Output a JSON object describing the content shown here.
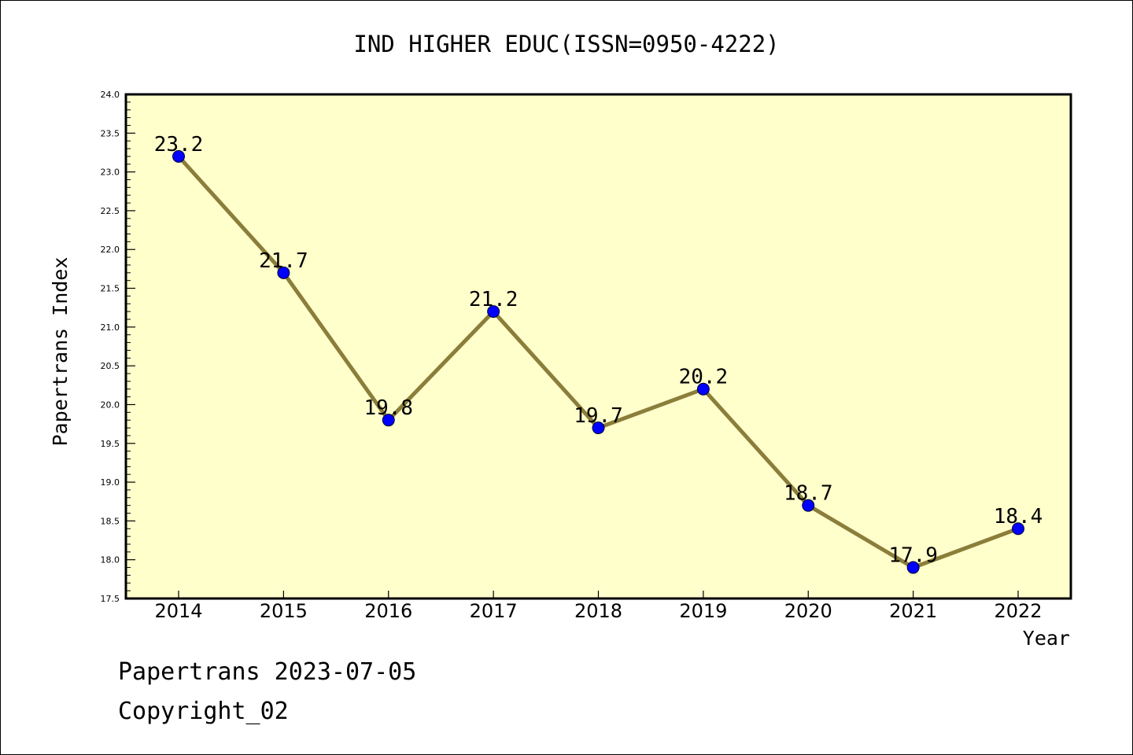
{
  "chart_data": {
    "type": "line",
    "title": "IND HIGHER EDUC(ISSN=0950-4222)",
    "xlabel": "Year",
    "ylabel": "Papertrans Index",
    "categories": [
      "2014",
      "2015",
      "2016",
      "2017",
      "2018",
      "2019",
      "2020",
      "2021",
      "2022"
    ],
    "values": [
      23.2,
      21.7,
      19.8,
      21.2,
      19.7,
      20.2,
      18.7,
      17.9,
      18.4
    ],
    "data_labels": [
      "23.2",
      "21.7",
      "19.8",
      "21.2",
      "19.7",
      "20.2",
      "18.7",
      "17.9",
      "18.4"
    ],
    "ylim": [
      17.5,
      24.0
    ],
    "y_ticks": [
      "17.5",
      "18.0",
      "18.5",
      "19.0",
      "19.5",
      "20.0",
      "20.5",
      "21.0",
      "21.5",
      "22.0",
      "22.5",
      "23.0",
      "23.5",
      "24.0"
    ],
    "grid": false,
    "colors": {
      "plot_background": "#ffffcc",
      "line": "#8b7d3a",
      "marker": "#0000ff"
    }
  },
  "footer": {
    "line1": "Papertrans 2023-07-05",
    "line2": "Copyright_02"
  }
}
